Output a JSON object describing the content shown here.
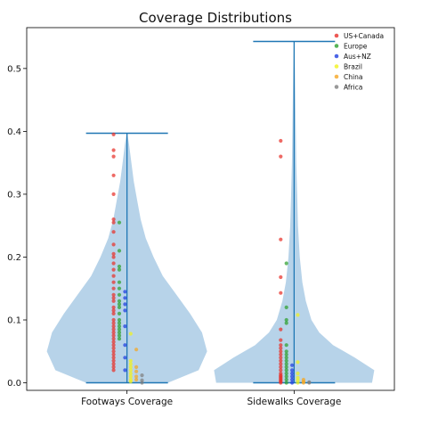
{
  "chart_data": {
    "type": "violin",
    "title": "Coverage Distributions",
    "xlabel": "",
    "ylabel": "",
    "categories": [
      "Footways Coverage",
      "Sidewalks Coverage"
    ],
    "ylim": [
      -0.012,
      0.565
    ],
    "yticks": [
      "0.0",
      "0.1",
      "0.2",
      "0.3",
      "0.4",
      "0.5"
    ],
    "grid": false,
    "legend_position": "top-right",
    "violin_color": "#b7d3e9",
    "line_color": "#1f77b4",
    "violins": [
      {
        "category": "Footways Coverage",
        "min": 0.0,
        "max": 0.397,
        "profile": [
          [
            0.0,
            0.12
          ],
          [
            0.02,
            0.21
          ],
          [
            0.05,
            0.235
          ],
          [
            0.08,
            0.22
          ],
          [
            0.11,
            0.185
          ],
          [
            0.14,
            0.145
          ],
          [
            0.17,
            0.105
          ],
          [
            0.2,
            0.078
          ],
          [
            0.23,
            0.055
          ],
          [
            0.26,
            0.04
          ],
          [
            0.29,
            0.03
          ],
          [
            0.32,
            0.02
          ],
          [
            0.35,
            0.013
          ],
          [
            0.38,
            0.006
          ],
          [
            0.397,
            0.001
          ]
        ]
      },
      {
        "category": "Sidewalks Coverage",
        "min": 0.0,
        "max": 0.543,
        "profile": [
          [
            0.0,
            0.18
          ],
          [
            0.02,
            0.185
          ],
          [
            0.04,
            0.14
          ],
          [
            0.06,
            0.09
          ],
          [
            0.08,
            0.058
          ],
          [
            0.1,
            0.04
          ],
          [
            0.13,
            0.027
          ],
          [
            0.16,
            0.019
          ],
          [
            0.2,
            0.013
          ],
          [
            0.25,
            0.009
          ],
          [
            0.3,
            0.007
          ],
          [
            0.35,
            0.005
          ],
          [
            0.4,
            0.004
          ],
          [
            0.45,
            0.003
          ],
          [
            0.5,
            0.002
          ],
          [
            0.543,
            0.0005
          ]
        ]
      }
    ],
    "series": [
      {
        "name": "US+Canada",
        "color": "#e8302a",
        "points": [
          {
            "violin": 0,
            "offset": -0.08,
            "values": [
              0.395,
              0.37,
              0.36,
              0.33,
              0.3,
              0.26,
              0.255,
              0.24,
              0.22,
              0.205,
              0.2,
              0.19,
              0.18,
              0.17,
              0.16,
              0.15,
              0.14,
              0.135,
              0.13,
              0.12,
              0.115,
              0.11,
              0.1,
              0.095,
              0.09,
              0.085,
              0.08,
              0.075,
              0.07,
              0.065,
              0.06,
              0.055,
              0.05,
              0.045,
              0.04,
              0.035,
              0.03,
              0.025,
              0.02
            ]
          },
          {
            "violin": 1,
            "offset": -0.08,
            "values": [
              0.385,
              0.36,
              0.228,
              0.168,
              0.143,
              0.085,
              0.068,
              0.06,
              0.055,
              0.05,
              0.045,
              0.04,
              0.035,
              0.03,
              0.025,
              0.02,
              0.015,
              0.012,
              0.01,
              0.008,
              0.006,
              0.004,
              0.002,
              0.0
            ]
          }
        ]
      },
      {
        "name": "Europe",
        "color": "#2ca02c",
        "points": [
          {
            "violin": 0,
            "offset": -0.046,
            "values": [
              0.255,
              0.21,
              0.185,
              0.18,
              0.16,
              0.15,
              0.14,
              0.13,
              0.125,
              0.12,
              0.11,
              0.1,
              0.095,
              0.09,
              0.085,
              0.08,
              0.075,
              0.07
            ]
          },
          {
            "violin": 1,
            "offset": -0.046,
            "values": [
              0.19,
              0.12,
              0.1,
              0.095,
              0.06,
              0.05,
              0.045,
              0.04,
              0.035,
              0.03,
              0.025,
              0.02,
              0.015,
              0.01,
              0.005,
              0.0
            ]
          }
        ]
      },
      {
        "name": "Aus+NZ",
        "color": "#1f3fe0",
        "points": [
          {
            "violin": 0,
            "offset": -0.012,
            "values": [
              0.145,
              0.135,
              0.125,
              0.115,
              0.09,
              0.06,
              0.04,
              0.02
            ]
          },
          {
            "violin": 1,
            "offset": -0.012,
            "values": [
              0.028,
              0.02,
              0.015,
              0.01,
              0.005,
              0.0
            ]
          }
        ]
      },
      {
        "name": "Brazil",
        "color": "#f2f21a",
        "points": [
          {
            "violin": 0,
            "offset": 0.022,
            "values": [
              0.078,
              0.035,
              0.03,
              0.025,
              0.02,
              0.015,
              0.01,
              0.005,
              0.002
            ]
          },
          {
            "violin": 1,
            "offset": 0.022,
            "values": [
              0.108,
              0.033,
              0.015,
              0.008,
              0.004,
              0.0
            ]
          }
        ]
      },
      {
        "name": "China",
        "color": "#f5a623",
        "points": [
          {
            "violin": 0,
            "offset": 0.056,
            "values": [
              0.053,
              0.025,
              0.018,
              0.01,
              0.005
            ]
          },
          {
            "violin": 1,
            "offset": 0.056,
            "values": [
              0.005,
              0.002,
              0.0
            ]
          }
        ]
      },
      {
        "name": "Africa",
        "color": "#7f7f7f",
        "points": [
          {
            "violin": 0,
            "offset": 0.09,
            "values": [
              0.012,
              0.004,
              0.0
            ]
          },
          {
            "violin": 1,
            "offset": 0.09,
            "values": [
              0.001,
              0.0
            ]
          }
        ]
      }
    ]
  }
}
